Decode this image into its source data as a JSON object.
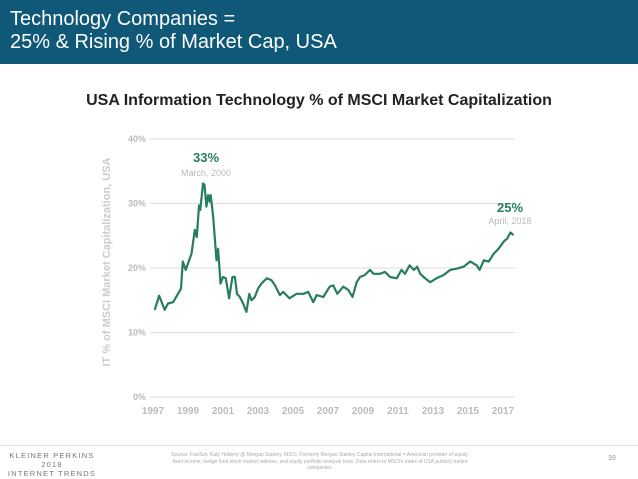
{
  "slide": {
    "title_line1": "Technology Companies =",
    "title_line2": "25% & Rising % of Market Cap, USA",
    "page_number": "39",
    "colors": {
      "banner": "#0f5878",
      "line": "#277c62",
      "grid": "#dddddd"
    }
  },
  "footer": {
    "logo_line1": "KLEINER PERKINS",
    "logo_line2": "2018",
    "logo_line3": "INTERNET TRENDS",
    "source": "Source: FactSet, Katy Huberty @ Morgan Stanley. MSCI, Formerly Morgan Stanley Capital International = American provider of equity, fixed income, hedge fund stock market indexes, and equity portfolio analysis tools. Data refers to MSCI's index of USA publicly traded companies."
  },
  "chart_data": {
    "type": "line",
    "title": "USA Information Technology % of MSCI Market Capitalization",
    "xlabel": "",
    "ylabel": "IT % of MSCI Market Capitalization, USA",
    "xlim": [
      1997,
      2018.3
    ],
    "ylim": [
      0,
      40
    ],
    "grid": true,
    "x_ticks": [
      "1997",
      "1999",
      "2001",
      "2003",
      "2005",
      "2007",
      "2009",
      "2011",
      "2013",
      "2015",
      "2017"
    ],
    "y_ticks": [
      "0%",
      "10%",
      "20%",
      "30%",
      "40%"
    ],
    "annotations": [
      {
        "value": "33%",
        "label": "March, 2000",
        "x": 1999.86,
        "y": 33.1
      },
      {
        "value": "25%",
        "label": "April, 2018",
        "x": 2017.5,
        "y": 25.4
      }
    ],
    "series": [
      {
        "x": [
          1997.1,
          1997.35,
          1997.67,
          1997.86,
          1998.15,
          1998.43,
          1998.6,
          1998.7,
          1998.87,
          1999.0,
          1999.2,
          1999.39,
          1999.5,
          1999.63,
          1999.7,
          1999.86,
          1999.94,
          2000.05,
          2000.15,
          2000.24,
          2000.3,
          2000.44,
          2000.63,
          2000.72,
          2000.86,
          2001.0,
          2001.16,
          2001.35,
          2001.54,
          2001.68,
          2001.8,
          2001.96,
          2002.15,
          2002.34,
          2002.5,
          2002.63,
          2002.82,
          2003.0,
          2003.2,
          2003.5,
          2003.77,
          2003.97,
          2004.25,
          2004.44,
          2004.8,
          2005.2,
          2005.6,
          2005.87,
          2006.16,
          2006.35,
          2006.73,
          2007.1,
          2007.3,
          2007.53,
          2007.87,
          2008.16,
          2008.4,
          2008.64,
          2008.83,
          2009.1,
          2009.4,
          2009.6,
          2009.98,
          2010.26,
          2010.55,
          2010.93,
          2011.2,
          2011.4,
          2011.66,
          2011.9,
          2012.1,
          2012.27,
          2012.55,
          2012.84,
          2013.2,
          2013.6,
          2013.98,
          2014.37,
          2014.75,
          2015.13,
          2015.5,
          2015.66,
          2015.9,
          2016.18,
          2016.47,
          2016.75,
          2017.04,
          2017.25,
          2017.42,
          2017.6
        ],
        "values": [
          13.5,
          15.7,
          13.5,
          14.5,
          14.7,
          16.0,
          16.8,
          21.0,
          19.7,
          20.7,
          22.2,
          25.9,
          24.8,
          29.7,
          29.0,
          33.1,
          32.9,
          29.5,
          31.3,
          30.3,
          31.3,
          27.9,
          21.2,
          23.0,
          17.6,
          18.6,
          18.4,
          15.3,
          18.6,
          18.6,
          16.0,
          15.5,
          14.5,
          13.2,
          16.0,
          15.0,
          15.5,
          16.8,
          17.6,
          18.4,
          18.1,
          17.3,
          15.8,
          16.3,
          15.3,
          16.0,
          16.0,
          16.3,
          14.7,
          15.8,
          15.5,
          17.1,
          17.3,
          16.0,
          17.1,
          16.6,
          15.5,
          17.8,
          18.6,
          18.9,
          19.7,
          19.1,
          19.1,
          19.4,
          18.6,
          18.4,
          19.7,
          19.1,
          20.4,
          19.7,
          20.2,
          19.1,
          18.4,
          17.8,
          18.4,
          18.9,
          19.7,
          19.9,
          20.2,
          21.0,
          20.4,
          19.7,
          21.2,
          21.0,
          22.2,
          23.0,
          24.1,
          24.6,
          25.5,
          25.1
        ]
      }
    ]
  }
}
